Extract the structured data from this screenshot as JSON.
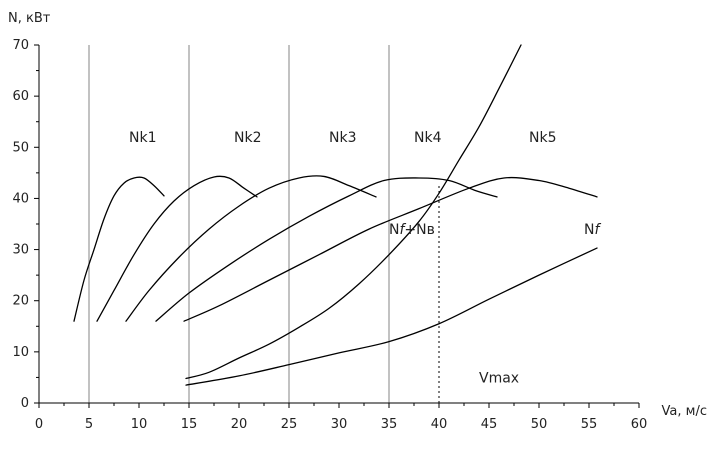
{
  "chart_data": {
    "type": "line",
    "xlabel": "Va, м/с",
    "ylabel": "N, кВт",
    "xlim": [
      0,
      60
    ],
    "ylim": [
      0,
      70
    ],
    "x_ticks": [
      0,
      5,
      10,
      15,
      20,
      25,
      30,
      35,
      40,
      45,
      50,
      55,
      60
    ],
    "y_ticks": [
      0,
      10,
      20,
      30,
      40,
      50,
      60,
      70
    ],
    "gear_gridlines_x": [
      5,
      15,
      25,
      35
    ],
    "grid": false,
    "series": [
      {
        "name": "Nk1",
        "x": [
          3.5,
          4.5,
          5.5,
          6.5,
          7.5,
          8.5,
          9.5,
          10.5,
          11.5,
          12.5
        ],
        "y": [
          16,
          24,
          30,
          36,
          40.5,
          43,
          44,
          44,
          42.5,
          40.5
        ]
      },
      {
        "name": "Nk2",
        "x": [
          5.8,
          7.5,
          9.5,
          11.5,
          13.5,
          15.5,
          17.5,
          19,
          20.5,
          21.8
        ],
        "y": [
          16,
          22,
          29,
          35,
          39.5,
          42.5,
          44.2,
          44,
          42,
          40.3
        ]
      },
      {
        "name": "Nk3",
        "x": [
          8.7,
          11,
          14,
          17,
          20,
          23,
          26,
          28.5,
          31,
          33.7
        ],
        "y": [
          16,
          22,
          28.5,
          34,
          38.5,
          42,
          44,
          44.3,
          42.5,
          40.3
        ]
      },
      {
        "name": "Nk4",
        "x": [
          11.7,
          15,
          19,
          23,
          27,
          31,
          34.5,
          38,
          41,
          43.7,
          45.8
        ],
        "y": [
          16,
          21.5,
          27,
          32,
          36.5,
          40.5,
          43.5,
          44,
          43.5,
          41.5,
          40.3
        ]
      },
      {
        "name": "Nk5",
        "x": [
          14.5,
          18,
          23,
          28,
          33,
          38,
          43,
          46.5,
          50,
          53,
          55.8
        ],
        "y": [
          16,
          19,
          24,
          29,
          34,
          38,
          42,
          44,
          43.5,
          42,
          40.3
        ]
      },
      {
        "name": "Nf",
        "x": [
          14.7,
          20,
          25,
          30,
          35,
          40,
          45,
          50,
          55.8
        ],
        "y": [
          3.5,
          5.3,
          7.5,
          9.8,
          12,
          15.5,
          20.3,
          25,
          30.3
        ]
      },
      {
        "name": "Nf+Nв",
        "x": [
          14.7,
          17,
          20,
          23,
          26,
          29,
          32,
          35,
          38,
          40,
          42,
          44,
          46,
          48.2
        ],
        "y": [
          4.8,
          6,
          8.8,
          11.5,
          14.8,
          18.5,
          23.3,
          29,
          35.5,
          41,
          47.5,
          54,
          61.5,
          70
        ]
      }
    ],
    "curve_labels": [
      {
        "text": "Nk1",
        "x": 9,
        "y": 51
      },
      {
        "text": "Nk2",
        "x": 19.5,
        "y": 51
      },
      {
        "text": "Nk3",
        "x": 29,
        "y": 51
      },
      {
        "text": "Nk4",
        "x": 37.5,
        "y": 51
      },
      {
        "text": "Nk5",
        "x": 49,
        "y": 51
      },
      {
        "text": "Nf+Nв",
        "x": 35,
        "y": 33
      },
      {
        "text": "Nf",
        "x": 54.5,
        "y": 33
      },
      {
        "text": "Vmax",
        "x": 44,
        "y": 4
      }
    ],
    "vmax": {
      "label": "Vmax",
      "x": 40
    }
  }
}
